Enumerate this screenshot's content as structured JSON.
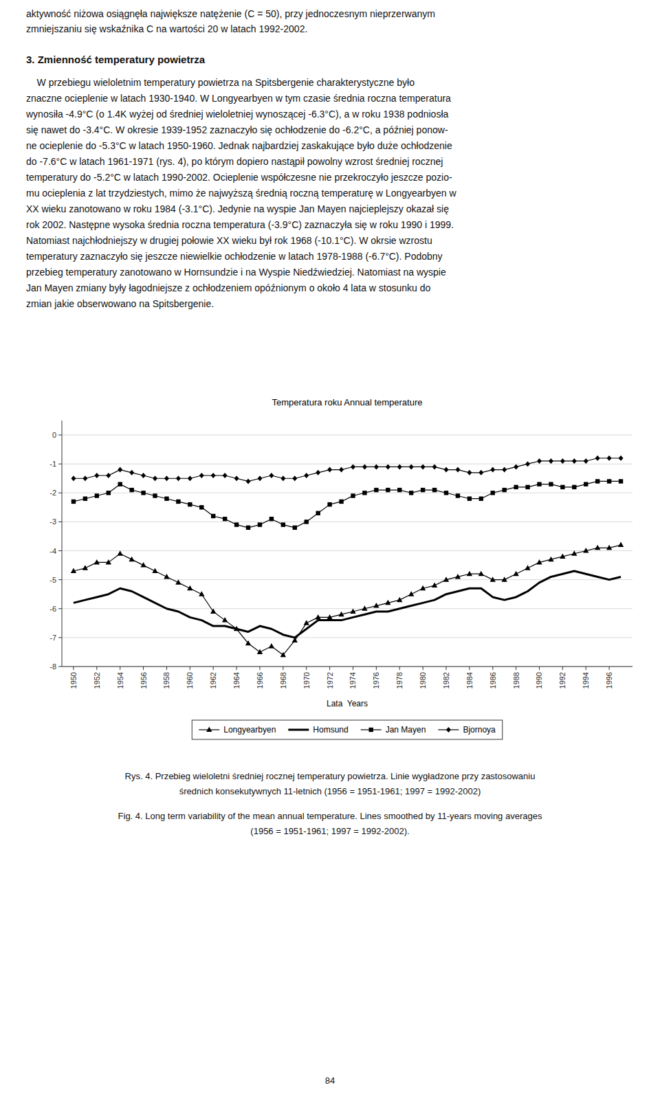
{
  "text_before": [
    "aktywność niżowa osiągnęła największe natężenie (C = 50), przy jednoczesnym nieprzerwanym",
    "zmniejszaniu się wskaźnika C na wartości 20 w latach 1992-2002."
  ],
  "heading": "3. Zmienność temperatury powietrza",
  "paragraph": [
    "    W przebiegu wieloletnim temperatury powietrza na Spitsbergenie charakterystyczne było",
    "znaczne ocieplenie w latach 1930-1940. W Longyearbyen w tym czasie średnia roczna temperatura",
    "wynosiła -4.9°C (o 1.4K wyżej od średniej wieloletniej wynoszącej -6.3°C), a w roku 1938 podniosła",
    "się nawet do -3.4°C. W okresie 1939-1952 zaznaczyło się ochłodzenie do -6.2°C, a później ponow-",
    "ne ocieplenie do -5.3°C w latach 1950-1960. Jednak najbardziej zaskakujące było duże ochłodzenie",
    "do -7.6°C w latach 1961-1971 (rys. 4), po którym dopiero nastąpił powolny wzrost średniej rocznej",
    "temperatury do -5.2°C w latach 1990-2002. Ocieplenie współczesne nie przekroczyło jeszcze pozio-",
    "mu ocieplenia z lat trzydziestych, mimo że najwyższą średnią roczną temperaturę w Longyearbyen w",
    "XX wieku zanotowano w roku 1984 (-3.1°C). Jedynie na wyspie Jan Mayen najcieplejszy okazał się",
    "rok 2002. Następne wysoka średnia roczna temperatura (-3.9°C) zaznaczyła się w roku 1990 i 1999.",
    "Natomiast najchłodniejszy w drugiej połowie XX wieku był rok 1968 (-10.1°C). W okrsie wzrostu",
    "temperatury zaznaczyło się jeszcze niewielkie ochłodzenie w latach 1978-1988 (-6.7°C). Podobny",
    "przebieg temperatury zanotowano w Hornsundzie i na Wyspie Niedźwiedziej. Natomiast na wyspie",
    "Jan Mayen zmiany były łagodniejsze z ochłodzeniem opóźnionym o około 4 lata w stosunku do",
    "zmian jakie obserwowano na Spitsbergenie."
  ],
  "chart_data": {
    "type": "line",
    "title": "Temperatura roku Annual temperature",
    "x_label": "Lata  Years",
    "x": [
      1950,
      1951,
      1952,
      1953,
      1954,
      1955,
      1956,
      1957,
      1958,
      1959,
      1960,
      1961,
      1962,
      1963,
      1964,
      1965,
      1966,
      1967,
      1968,
      1969,
      1970,
      1971,
      1972,
      1973,
      1974,
      1975,
      1976,
      1977,
      1978,
      1979,
      1980,
      1981,
      1982,
      1983,
      1984,
      1985,
      1986,
      1987,
      1988,
      1989,
      1990,
      1991,
      1992,
      1993,
      1994,
      1995,
      1996,
      1997
    ],
    "xlim": [
      1949,
      1998
    ],
    "xticks": [
      1950,
      1952,
      1954,
      1956,
      1958,
      1960,
      1962,
      1964,
      1966,
      1968,
      1970,
      1972,
      1974,
      1976,
      1978,
      1980,
      1982,
      1984,
      1986,
      1988,
      1990,
      1992,
      1994,
      1996
    ],
    "ylim": [
      -8,
      0.5
    ],
    "yticks": [
      0,
      -1,
      -2,
      -3,
      -4,
      -5,
      -6,
      -7,
      -8
    ],
    "grid": true,
    "legend": "bottom",
    "series": [
      {
        "name": "Longyearbyen",
        "color": "#000000",
        "marker": "triangle",
        "line_style": "solid",
        "values": [
          -4.7,
          -4.6,
          -4.4,
          -4.4,
          -4.1,
          -4.3,
          -4.5,
          -4.7,
          -4.9,
          -5.1,
          -5.3,
          -5.5,
          -6.1,
          -6.4,
          -6.7,
          -7.2,
          -7.5,
          -7.3,
          -7.6,
          -7.1,
          -6.5,
          -6.3,
          -6.3,
          -6.2,
          -6.1,
          -6.0,
          -5.9,
          -5.8,
          -5.7,
          -5.5,
          -5.3,
          -5.2,
          -5.0,
          -4.9,
          -4.8,
          -4.8,
          -5.0,
          -5.0,
          -4.8,
          -4.6,
          -4.4,
          -4.3,
          -4.2,
          -4.1,
          -4.0,
          -3.9,
          -3.9,
          -3.8
        ]
      },
      {
        "name": "Homsund",
        "color": "#000000",
        "marker": "none",
        "line_style": "solid",
        "values": [
          -5.8,
          -5.7,
          -5.6,
          -5.5,
          -5.3,
          -5.4,
          -5.6,
          -5.8,
          -6.0,
          -6.1,
          -6.3,
          -6.4,
          -6.6,
          -6.6,
          -6.7,
          -6.8,
          -6.6,
          -6.7,
          -6.9,
          -7.0,
          -6.7,
          -6.4,
          -6.4,
          -6.4,
          -6.3,
          -6.2,
          -6.1,
          -6.1,
          -6.0,
          -5.9,
          -5.8,
          -5.7,
          -5.5,
          -5.4,
          -5.3,
          -5.3,
          -5.6,
          -5.7,
          -5.6,
          -5.4,
          -5.1,
          -4.9,
          -4.8,
          -4.7,
          -4.8,
          -4.9,
          -5.0,
          -4.9
        ]
      },
      {
        "name": "Jan Mayen",
        "color": "#000000",
        "marker": "square",
        "line_style": "solid",
        "values": [
          -2.3,
          -2.2,
          -2.1,
          -2.0,
          -1.7,
          -1.9,
          -2.0,
          -2.1,
          -2.2,
          -2.3,
          -2.4,
          -2.5,
          -2.8,
          -2.9,
          -3.1,
          -3.2,
          -3.1,
          -2.9,
          -3.1,
          -3.2,
          -3.0,
          -2.7,
          -2.4,
          -2.3,
          -2.1,
          -2.0,
          -1.9,
          -1.9,
          -1.9,
          -2.0,
          -1.9,
          -1.9,
          -2.0,
          -2.1,
          -2.2,
          -2.2,
          -2.0,
          -1.9,
          -1.8,
          -1.8,
          -1.7,
          -1.7,
          -1.8,
          -1.8,
          -1.7,
          -1.6,
          -1.6,
          -1.6
        ]
      },
      {
        "name": "Bjornoya",
        "color": "#000000",
        "marker": "diamond",
        "line_style": "solid",
        "values": [
          -1.5,
          -1.5,
          -1.4,
          -1.4,
          -1.2,
          -1.3,
          -1.4,
          -1.5,
          -1.5,
          -1.5,
          -1.5,
          -1.4,
          -1.4,
          -1.4,
          -1.5,
          -1.6,
          -1.5,
          -1.4,
          -1.5,
          -1.5,
          -1.4,
          -1.3,
          -1.2,
          -1.2,
          -1.1,
          -1.1,
          -1.1,
          -1.1,
          -1.1,
          -1.1,
          -1.1,
          -1.1,
          -1.2,
          -1.2,
          -1.3,
          -1.3,
          -1.2,
          -1.2,
          -1.1,
          -1.0,
          -0.9,
          -0.9,
          -0.9,
          -0.9,
          -0.9,
          -0.8,
          -0.8,
          -0.8
        ]
      }
    ]
  },
  "caption": [
    "Rys. 4. Przebieg wieloletni średniej rocznej temperatury powietrza. Linie wygładzone przy zastosowaniu",
    "średnich konsekutywnych 11-letnich (1956 = 1951-1961; 1997 = 1992-2002)",
    "Fig. 4. Long term variability of the mean annual temperature. Lines smoothed by 11-years moving averages",
    "(1956 = 1951-1961; 1997 = 1992-2002)."
  ],
  "page_number": "84"
}
